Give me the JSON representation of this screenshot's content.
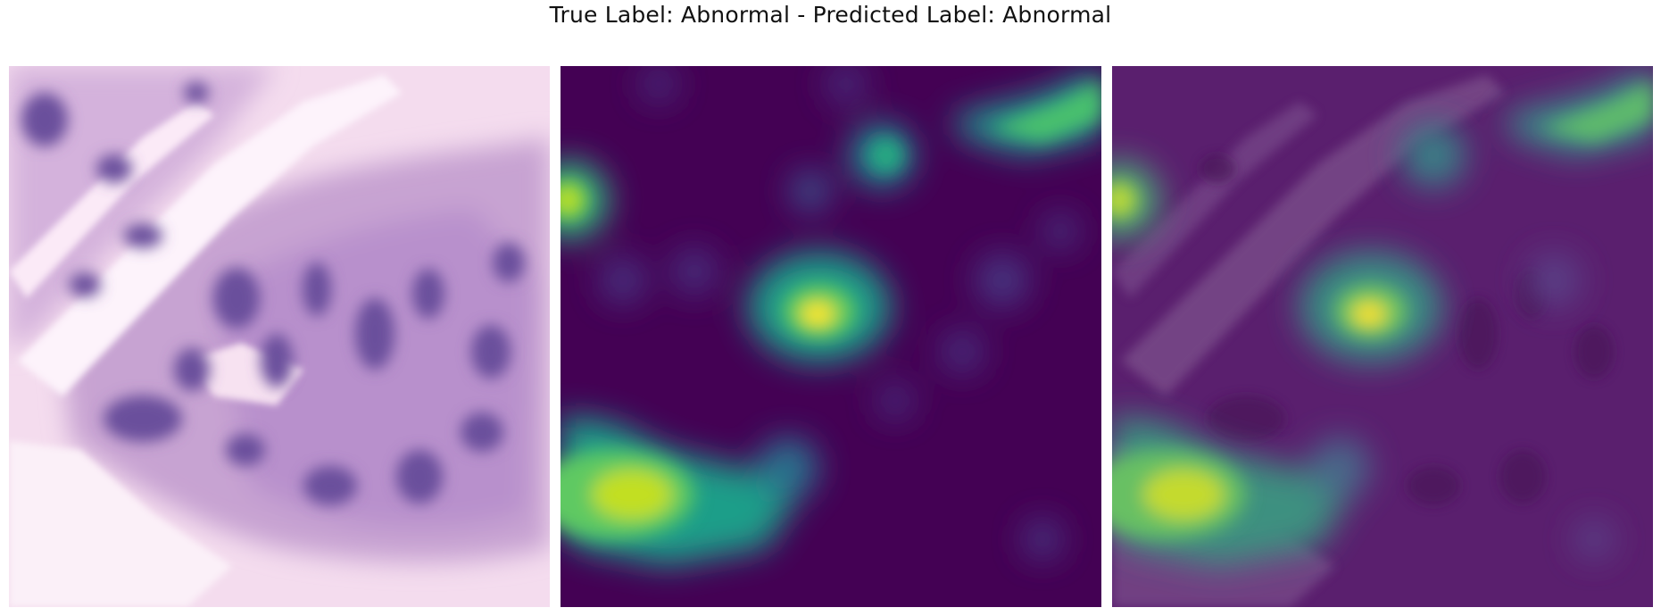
{
  "figure": {
    "title": "True Label: Abnormal - Predicted Label: Abnormal"
  },
  "panels": [
    {
      "name": "histology-image",
      "kind": "H&E stained tissue patch"
    },
    {
      "name": "attention-heatmap",
      "kind": "saliency heatmap",
      "colormap": "viridis"
    },
    {
      "name": "heatmap-overlay",
      "kind": "heatmap overlaid on tissue"
    }
  ],
  "colors": {
    "tissue_background": "#f6dbee",
    "nuclei": "#6b4f9e",
    "viridis_low": "#440154",
    "viridis_mid": "#21918c",
    "viridis_high": "#fde725"
  }
}
